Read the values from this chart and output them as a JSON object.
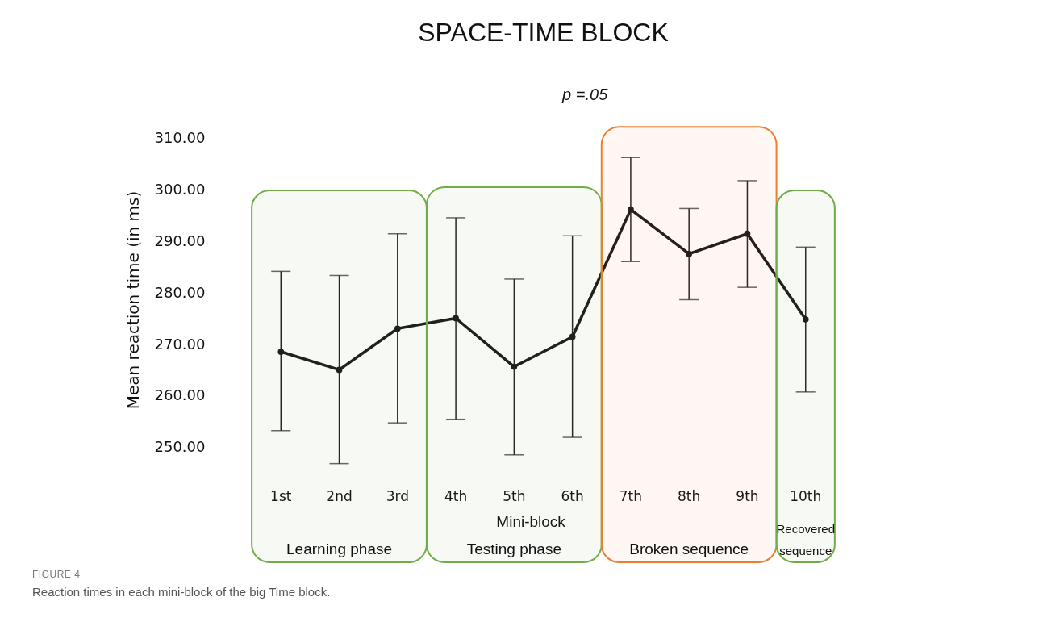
{
  "chart_data": {
    "type": "line",
    "title": "SPACE-TIME BLOCK",
    "xlabel": "Mini-block",
    "ylabel": "Mean reaction time (in ms)",
    "categories": [
      "1st",
      "2nd",
      "3rd",
      "4th",
      "5th",
      "6th",
      "7th",
      "8th",
      "9th",
      "10th"
    ],
    "series": [
      {
        "color": "#1a1a1a",
        "values": [
          268.6,
          265.1,
          273.1,
          275.1,
          265.7,
          271.5,
          296.2,
          287.6,
          291.5,
          274.9
        ],
        "errors": [
          [
            253.3,
            284.2
          ],
          [
            246.9,
            283.4
          ],
          [
            254.8,
            291.5
          ],
          [
            255.5,
            294.6
          ],
          [
            248.6,
            282.7
          ],
          [
            252.0,
            291.1
          ],
          [
            286.1,
            306.3
          ],
          [
            278.7,
            296.4
          ],
          [
            281.1,
            301.8
          ],
          [
            260.8,
            288.9
          ]
        ]
      }
    ],
    "ylim": [
      243.4,
      314
    ],
    "yticks": [
      {
        "value": 250,
        "label": "250.00"
      },
      {
        "value": 260,
        "label": "260.00"
      },
      {
        "value": 270,
        "label": "270.00"
      },
      {
        "value": 280,
        "label": "280.00"
      },
      {
        "value": 290,
        "label": "290.00"
      },
      {
        "value": 300,
        "label": "300.00"
      },
      {
        "value": 310,
        "label": "310.00"
      }
    ],
    "marker": "circle",
    "grid": false,
    "bands": [
      {
        "axis": "x",
        "from": "1st",
        "to": "3rd",
        "label": "Learning phase",
        "color": "#70ad47"
      },
      {
        "axis": "x",
        "from": "4th",
        "to": "6th",
        "label": "Testing phase",
        "color": "#70ad47"
      },
      {
        "axis": "x",
        "from": "7th",
        "to": "9th",
        "label": "Broken sequence",
        "color": "#ed7d31"
      },
      {
        "axis": "x",
        "from": "10th",
        "to": "10th",
        "label": "Recovered sequence",
        "color": "#70ad47"
      }
    ],
    "annotations": [
      "p =.05",
      "FIGURE 4",
      "Reaction times in each mini-block of the big Time block."
    ]
  }
}
